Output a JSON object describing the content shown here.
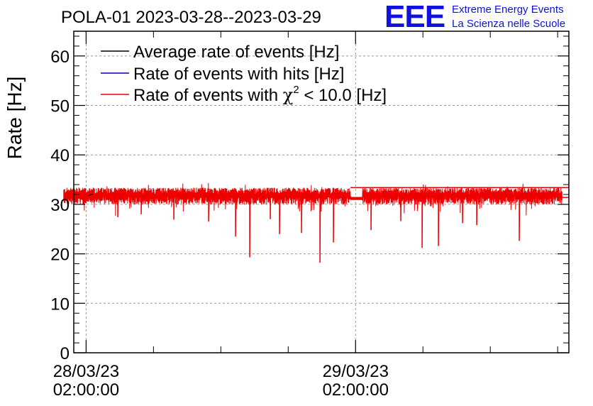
{
  "chart_data": {
    "type": "line",
    "title": "POLA-01 2023-03-28--2023-03-29",
    "ylabel": "Rate [Hz]",
    "xlabel": "",
    "ylim": [
      0,
      65
    ],
    "yticks": [
      0,
      10,
      20,
      30,
      40,
      50,
      60
    ],
    "xlim_hours": [
      -1.1,
      43.0
    ],
    "xticks": [
      {
        "hour": 0,
        "date": "28/03/23",
        "time": "02:00:00"
      },
      {
        "hour": 24,
        "date": "29/03/23",
        "time": "02:00:00"
      }
    ],
    "minor_xtick_hours": [
      -6,
      6,
      12,
      18,
      30,
      36,
      42
    ],
    "grid": true,
    "legend_position": "top-left",
    "series": [
      {
        "name": "Average rate of events [Hz]",
        "color": "#000000",
        "baseline": 31.8,
        "noise": 0.8,
        "start_hour": -2.0,
        "end_hour": 42.4,
        "flat_tail": [
          33.4,
          31.4
        ]
      },
      {
        "name": "Rate of events with hits [Hz]",
        "color": "#0000cc",
        "baseline": 31.8,
        "noise": 0.8,
        "start_hour": -2.0,
        "end_hour": 42.4,
        "flat_tail": [
          33.4,
          31.4
        ]
      },
      {
        "name": "Rate of events with χ² < 10.0 [Hz]",
        "legend_prefix": "Rate of events with ",
        "legend_chi": "χ",
        "legend_sup": "2",
        "legend_suffix": " < 10.0 [Hz]",
        "color": "#ee0000",
        "baseline": 31.8,
        "noise": 0.8,
        "start_hour": -2.0,
        "end_hour": 42.4,
        "flat_tail": [
          33.4,
          31.4
        ]
      }
    ],
    "dips": [
      {
        "hour": 14.6,
        "value": 19.3
      },
      {
        "hour": 20.8,
        "value": 18.2
      },
      {
        "hour": 13.3,
        "value": 23.5
      },
      {
        "hour": 17.2,
        "value": 24.0
      },
      {
        "hour": 19.2,
        "value": 24.2
      },
      {
        "hour": 22.0,
        "value": 22.3
      },
      {
        "hour": 29.9,
        "value": 21.2
      },
      {
        "hour": 31.4,
        "value": 21.6
      },
      {
        "hour": 38.6,
        "value": 22.6
      },
      {
        "hour": 25.4,
        "value": 24.8
      },
      {
        "hour": 10.9,
        "value": 26.5
      },
      {
        "hour": 7.8,
        "value": 26.9
      },
      {
        "hour": 2.8,
        "value": 27.4
      },
      {
        "hour": 33.5,
        "value": 26.2
      },
      {
        "hour": 34.8,
        "value": 25.8
      },
      {
        "hour": 28.0,
        "value": 26.6
      },
      {
        "hour": 16.4,
        "value": 27.0
      },
      {
        "hour": 4.9,
        "value": 28.0
      }
    ],
    "gap": {
      "hour_start": 23.55,
      "hour_end": 24.6,
      "level": 31.2
    }
  },
  "logo": {
    "mark": "EEE",
    "line1": "Extreme Energy Events",
    "line2": "La Scienza nelle Scuole"
  }
}
